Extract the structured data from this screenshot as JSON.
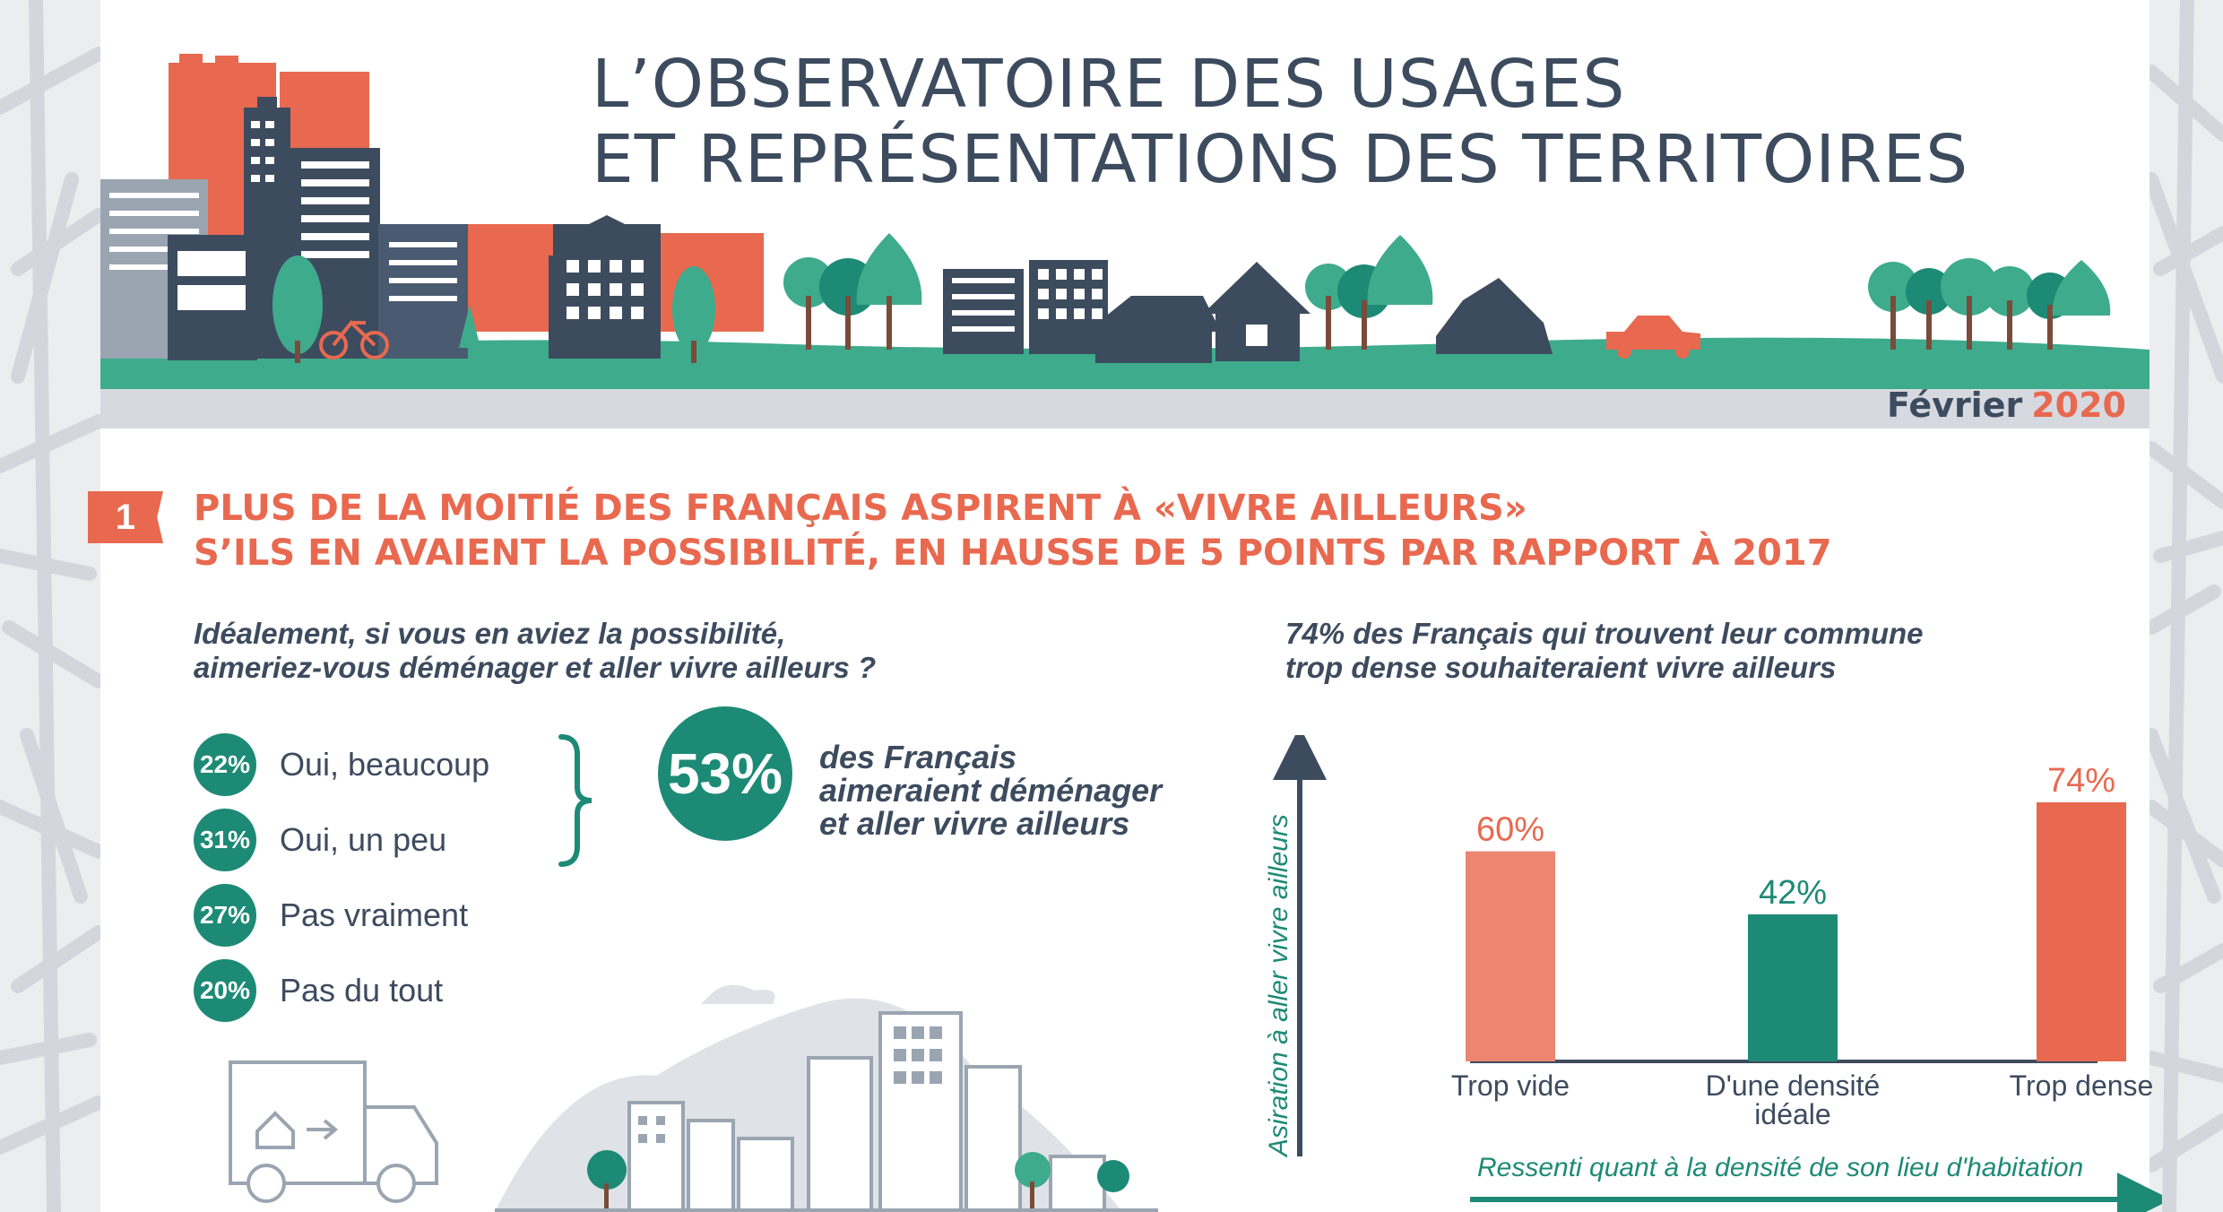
{
  "header": {
    "title_line1": "L’OBSERVATOIRE DES USAGES",
    "title_line2": "ET REPRÉSENTATIONS DES TERRITOIRES",
    "date_month": "Février",
    "date_year": "2020"
  },
  "section": {
    "number": "1",
    "title_line1": "PLUS DE LA MOITIÉ DES FRANÇAIS ASPIRENT À «VIVRE AILLEURS»",
    "title_line2": "S’ILS EN AVAIENT LA POSSIBILITÉ, EN HAUSSE DE 5 POINTS PAR RAPPORT À 2017"
  },
  "left": {
    "question_line1": "Idéalement, si vous en aviez la possibilité,",
    "question_line2": "aimeriez-vous déménager et aller vivre ailleurs ?",
    "options": [
      {
        "pct": "22%",
        "label": "Oui, beaucoup"
      },
      {
        "pct": "31%",
        "label": "Oui, un peu"
      },
      {
        "pct": "27%",
        "label": "Pas vraiment"
      },
      {
        "pct": "20%",
        "label": "Pas du tout"
      }
    ],
    "summary_pct": "53%",
    "summary_line1": "des Français",
    "summary_line2": "aimeraient déménager",
    "summary_line3": "et aller vivre ailleurs"
  },
  "right": {
    "question_line1": "74% des Français qui trouvent leur commune",
    "question_line2": "trop dense souhaiteraient vivre ailleurs"
  },
  "chart_data": {
    "type": "bar",
    "categories": [
      "Trop vide",
      "D'une densité idéale",
      "Trop dense"
    ],
    "category_lines": [
      [
        "Trop vide"
      ],
      [
        "D'une densité",
        "idéale"
      ],
      [
        "Trop dense"
      ]
    ],
    "values": [
      60,
      42,
      74
    ],
    "value_labels": [
      "60%",
      "42%",
      "74%"
    ],
    "colors": [
      "#ec8571",
      "#1d8a76",
      "#e8694f"
    ],
    "label_colors": [
      "#e8694f",
      "#1d8a76",
      "#e8694f"
    ],
    "ylabel": "Asiration à aller vivre ailleurs",
    "xlabel": "Ressenti quant à la densité de son lieu d'habitation",
    "ylim": [
      0,
      100
    ]
  },
  "colors": {
    "navy": "#3d4b5e",
    "coral": "#e8694f",
    "teal": "#1d8a76",
    "green": "#3eab8c"
  }
}
